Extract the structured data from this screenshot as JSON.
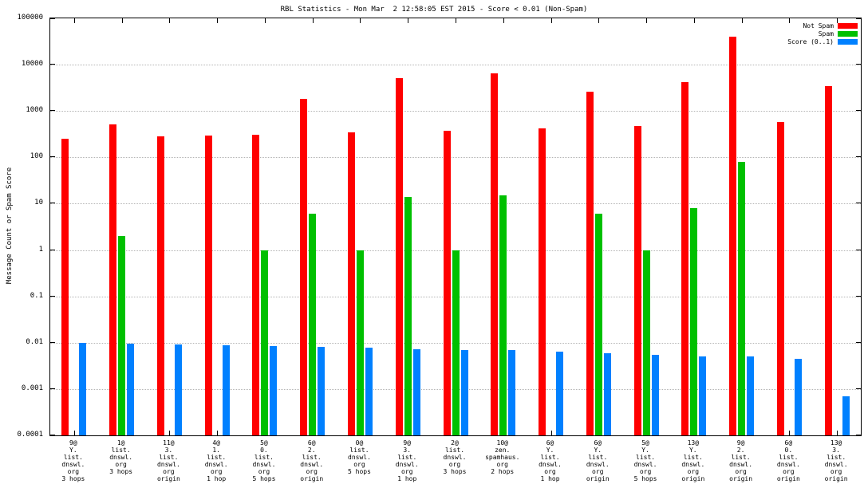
{
  "chart_data": {
    "type": "bar",
    "title": "RBL Statistics - Mon Mar  2 12:58:05 EST 2015 - Score < 0.01 (Non-Spam)",
    "ylabel": "Message Count or Spam Score",
    "xlabel": "",
    "scale": "log",
    "grid": "horizontal-dotted",
    "legend_position": "top-right",
    "ylim": [
      0.0001,
      100000
    ],
    "yticks": [
      "0.0001",
      "0.001",
      "0.01",
      "0.1",
      "1",
      "10",
      "100",
      "1000",
      "10000",
      "100000"
    ],
    "categories": [
      [
        "9@",
        "Y.",
        "list.",
        "dnswl.",
        "org",
        "3 hops"
      ],
      [
        "1@",
        "list.",
        "dnswl.",
        "org",
        "3 hops"
      ],
      [
        "11@",
        "3.",
        "list.",
        "dnswl.",
        "org",
        "origin"
      ],
      [
        "4@",
        "1.",
        "list.",
        "dnswl.",
        "org",
        "1 hop"
      ],
      [
        "5@",
        "0.",
        "list.",
        "dnswl.",
        "org",
        "5 hops"
      ],
      [
        "6@",
        "2.",
        "list.",
        "dnswl.",
        "org",
        "origin"
      ],
      [
        "0@",
        "list.",
        "dnswl.",
        "org",
        "5 hops"
      ],
      [
        "9@",
        "3.",
        "list.",
        "dnswl.",
        "org",
        "1 hop"
      ],
      [
        "2@",
        "list.",
        "dnswl.",
        "org",
        "3 hops"
      ],
      [
        "10@",
        "zen.",
        "spamhaus.",
        "org",
        "2 hops"
      ],
      [
        "6@",
        "Y.",
        "list.",
        "dnswl.",
        "org",
        "1 hop"
      ],
      [
        "6@",
        "Y.",
        "list.",
        "dnswl.",
        "org",
        "origin"
      ],
      [
        "5@",
        "Y.",
        "list.",
        "dnswl.",
        "org",
        "5 hops"
      ],
      [
        "13@",
        "Y.",
        "list.",
        "dnswl.",
        "org",
        "origin"
      ],
      [
        "9@",
        "2.",
        "list.",
        "dnswl.",
        "org",
        "origin"
      ],
      [
        "6@",
        "0.",
        "list.",
        "dnswl.",
        "org",
        "origin"
      ],
      [
        "13@",
        "3.",
        "list.",
        "dnswl.",
        "org",
        "origin"
      ]
    ],
    "series": [
      {
        "name": "Not Spam",
        "color": "#ff0000",
        "values": [
          250,
          520,
          280,
          290,
          310,
          1800,
          350,
          5200,
          380,
          6500,
          420,
          2600,
          480,
          4200,
          40000,
          580,
          3500
        ]
      },
      {
        "name": "Spam",
        "color": "#00c000",
        "values": [
          null,
          2,
          null,
          null,
          1,
          6,
          1,
          14,
          1,
          15,
          null,
          6,
          1,
          8,
          80,
          null,
          null
        ]
      },
      {
        "name": "Score (0..1)",
        "color": "#0080ff",
        "values": [
          0.01,
          0.0095,
          0.009,
          0.0088,
          0.0085,
          0.0082,
          0.0077,
          0.0072,
          0.007,
          0.007,
          0.0065,
          0.006,
          0.0055,
          0.005,
          0.005,
          0.0045,
          0.0007
        ]
      }
    ]
  }
}
